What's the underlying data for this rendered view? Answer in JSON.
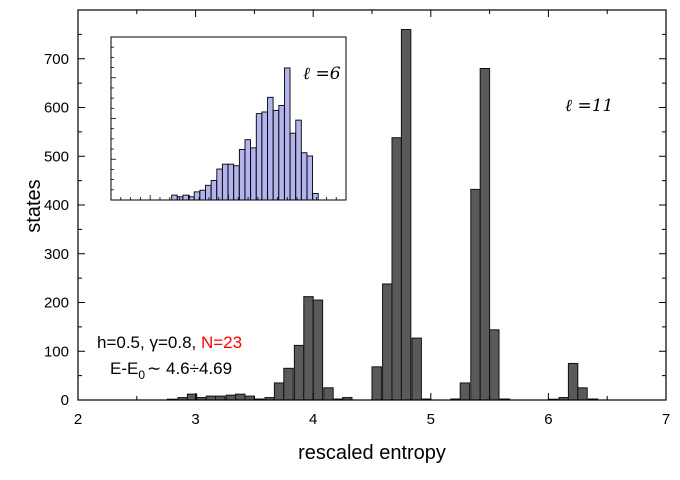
{
  "chart_data": [
    {
      "type": "bar",
      "xlabel": "rescaled entropy",
      "ylabel": "states",
      "xlim": [
        2,
        7
      ],
      "ylim": [
        0,
        800
      ],
      "x_ticks": [
        "2",
        "3",
        "4",
        "5",
        "6",
        "7"
      ],
      "y_ticks": [
        "0",
        "100",
        "200",
        "300",
        "400",
        "500",
        "600",
        "700"
      ],
      "bar_width": 0.08,
      "series_label": "ℓ =11",
      "bars": {
        "x": [
          2.8,
          2.89,
          2.97,
          3.05,
          3.13,
          3.21,
          3.3,
          3.38,
          3.46,
          3.54,
          3.63,
          3.71,
          3.79,
          3.88,
          3.96,
          4.04,
          4.13,
          4.21,
          4.29,
          4.54,
          4.63,
          4.71,
          4.79,
          4.88,
          4.96,
          5.21,
          5.29,
          5.38,
          5.46,
          5.54,
          5.63,
          6.04,
          6.13,
          6.21,
          6.29,
          6.38
        ],
        "values": [
          1,
          5,
          12,
          5,
          8,
          8,
          10,
          12,
          8,
          2,
          5,
          35,
          65,
          112,
          212,
          205,
          25,
          2,
          5,
          68,
          238,
          538,
          760,
          127,
          2,
          2,
          35,
          432,
          680,
          144,
          2,
          1,
          5,
          75,
          25,
          2
        ]
      },
      "annotations": {
        "params_prefix": "h=0.5, γ=0.8, ",
        "params_n": "N=23",
        "params_n_color": "#ff0000",
        "energy_label": "E-E",
        "energy_sub": "0",
        "energy_range": "∼ 4.6÷4.69"
      },
      "bar_color": "#5a5a5a"
    },
    {
      "type": "bar",
      "inset": true,
      "series_label": "ℓ =6",
      "label_color": "#2222cc",
      "bar_color": "#b3b3ee",
      "xlim": [
        0,
        1
      ],
      "ylim": [
        0,
        1
      ],
      "bar_width": 0.0235,
      "bars": {
        "x": [
          0.27,
          0.294,
          0.318,
          0.342,
          0.366,
          0.39,
          0.414,
          0.438,
          0.462,
          0.486,
          0.51,
          0.534,
          0.558,
          0.582,
          0.606,
          0.63,
          0.654,
          0.678,
          0.702,
          0.726,
          0.75,
          0.774,
          0.798,
          0.822,
          0.846,
          0.87
        ],
        "values": [
          0.03,
          0.02,
          0.03,
          0.02,
          0.05,
          0.06,
          0.09,
          0.12,
          0.19,
          0.22,
          0.22,
          0.21,
          0.31,
          0.37,
          0.32,
          0.53,
          0.54,
          0.63,
          0.55,
          0.58,
          0.81,
          0.41,
          0.49,
          0.29,
          0.27,
          0.04
        ]
      }
    }
  ]
}
